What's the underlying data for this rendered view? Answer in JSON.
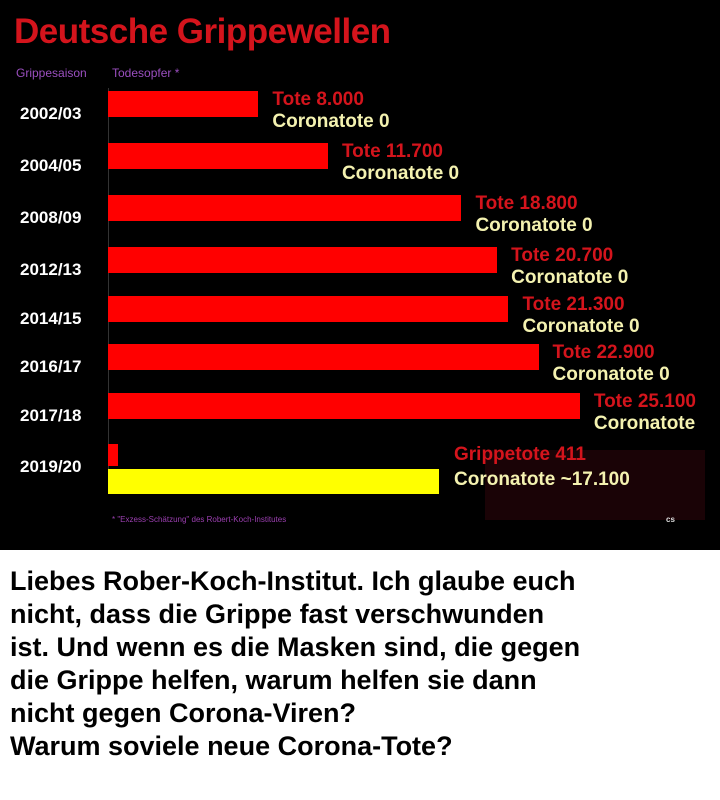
{
  "chart_data": {
    "type": "bar",
    "title": "Deutsche Grippewellen",
    "xlabel": "Todesopfer *",
    "ylabel": "Grippesaison",
    "categories": [
      "2002/03",
      "2004/05",
      "2008/09",
      "2012/13",
      "2014/15",
      "2016/17",
      "2017/18",
      "2019/20"
    ],
    "series": [
      {
        "name": "Grippetote",
        "color": "#ff0000",
        "values": [
          8000,
          11700,
          18800,
          20700,
          21300,
          22900,
          25100,
          411
        ]
      },
      {
        "name": "Coronatote",
        "color": "#ffff00",
        "values": [
          0,
          0,
          0,
          0,
          0,
          0,
          0,
          17100
        ]
      }
    ],
    "labels": [
      [
        "Tote 8.000",
        "Coronatote 0"
      ],
      [
        "Tote 11.700",
        "Coronatote 0"
      ],
      [
        "Tote 18.800",
        "Coronatote 0"
      ],
      [
        "Tote 20.700",
        "Coronatote 0"
      ],
      [
        "Tote 21.300",
        "Coronatote 0"
      ],
      [
        "Tote 22.900",
        "Coronatote 0"
      ],
      [
        "Tote 25.100",
        "Coronatote"
      ],
      [
        "Grippetote 411",
        "Coronatote ~17.100"
      ]
    ],
    "footnote": "* \"Exzess-Schätzung\" des Robert-Koch-Institutes",
    "signature": "cs"
  },
  "caption": [
    "Liebes Rober-Koch-Institut. Ich glaube euch",
    "nicht, dass die Grippe fast verschwunden",
    "ist. Und wenn es die Masken sind, die gegen",
    "die Grippe helfen, warum helfen sie dann",
    "nicht gegen Corona-Viren?",
    "Warum soviele neue Corona-Tote?"
  ]
}
